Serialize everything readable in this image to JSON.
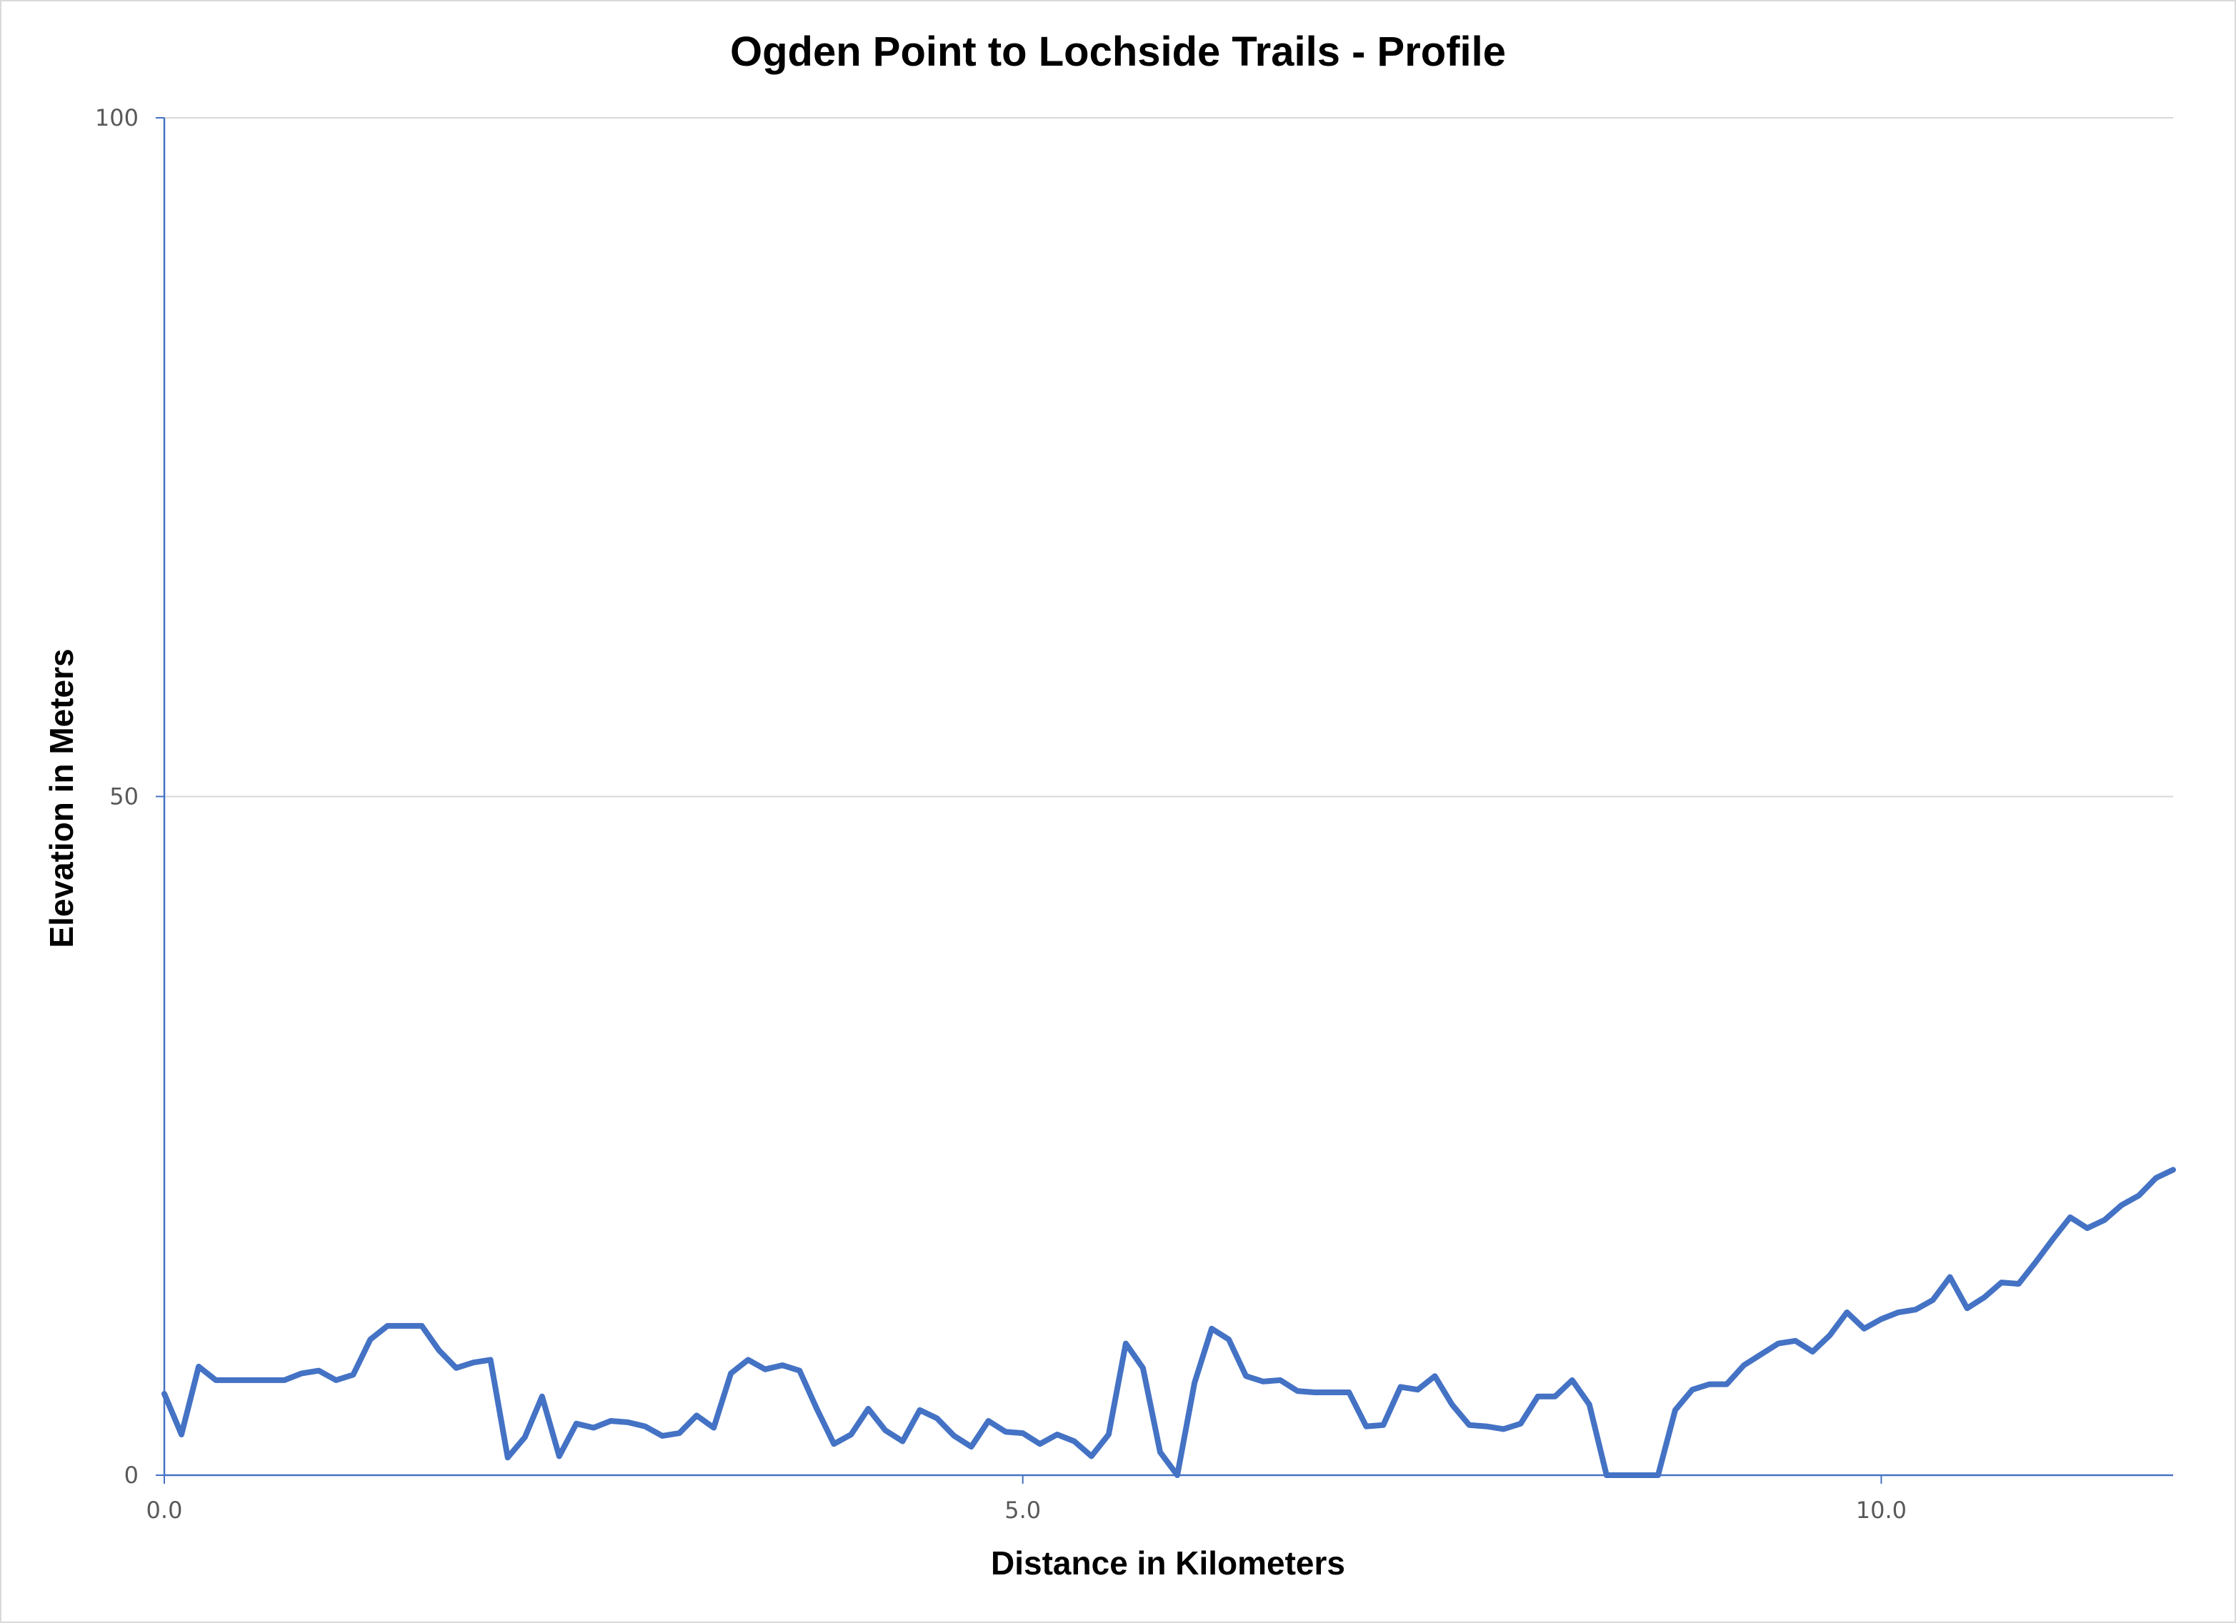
{
  "chart_data": {
    "type": "line",
    "title": "Ogden Point to Lochside Trails - Profile",
    "xlabel": "Distance in Kilometers",
    "ylabel": "Elevation in Meters",
    "xlim": [
      0,
      11.7
    ],
    "ylim": [
      0,
      100
    ],
    "xticks": [
      0,
      5,
      10
    ],
    "xtick_labels": [
      "0.0",
      "5.0",
      "10.0"
    ],
    "yticks": [
      0,
      50,
      100
    ],
    "ytick_labels": [
      "0",
      "50",
      "100"
    ],
    "grid": "horizontal",
    "legend": "none",
    "colors": {
      "line": "#4472c4",
      "axis": "#4472c4",
      "grid": "#d9d9d9"
    },
    "series": [
      {
        "x": [
          0,
          0.1,
          0.2,
          0.3,
          0.4,
          0.5,
          0.6,
          0.7,
          0.8,
          0.9,
          1.0,
          1.1,
          1.2,
          1.3,
          1.4,
          1.5,
          1.6,
          1.7,
          1.8,
          1.9,
          2.0,
          2.1,
          2.2,
          2.3,
          2.4,
          2.5,
          2.6,
          2.7,
          2.8,
          2.9,
          3.0,
          3.1,
          3.2,
          3.3,
          3.4,
          3.5,
          3.6,
          3.7,
          3.8,
          3.9,
          4.0,
          4.1,
          4.2,
          4.3,
          4.4,
          4.5,
          4.6,
          4.7,
          4.8,
          4.9,
          5.0,
          5.1,
          5.2,
          5.3,
          5.4,
          5.5,
          5.6,
          5.7,
          5.8,
          5.9,
          6.0,
          6.1,
          6.2,
          6.3,
          6.4,
          6.5,
          6.6,
          6.7,
          6.8,
          6.9,
          7.0,
          7.1,
          7.2,
          7.3,
          7.4,
          7.5,
          7.6,
          7.7,
          7.8,
          7.9,
          8.0,
          8.1,
          8.2,
          8.3,
          8.4,
          8.5,
          8.6,
          8.7,
          8.8,
          8.9,
          9.0,
          9.1,
          9.2,
          9.3,
          9.4,
          9.5,
          9.6,
          9.7,
          9.8,
          9.9,
          10.0,
          10.1,
          10.2,
          10.3,
          10.4,
          10.5,
          10.6,
          10.7,
          10.8,
          10.9,
          11.0,
          11.1,
          11.2,
          11.3,
          11.4,
          11.5,
          11.6,
          11.7
        ],
        "y": [
          6,
          3,
          8,
          7,
          7,
          7,
          7,
          7,
          7.5,
          7.7,
          7,
          7.4,
          10,
          11,
          11,
          11,
          9.2,
          7.9,
          8.3,
          8.5,
          1.3,
          2.8,
          5.8,
          1.4,
          3.8,
          3.5,
          4,
          3.9,
          3.6,
          2.9,
          3.1,
          4.4,
          3.5,
          7.5,
          8.5,
          7.8,
          8.1,
          7.7,
          4.9,
          2.3,
          3,
          4.9,
          3.3,
          2.5,
          4.8,
          4.2,
          2.9,
          2.1,
          4,
          3.2,
          3.1,
          2.3,
          3,
          2.5,
          1.4,
          3,
          9.7,
          7.9,
          1.7,
          0,
          6.8,
          10.8,
          10,
          7.3,
          6.9,
          7,
          6.2,
          6.1,
          6.1,
          6.1,
          3.6,
          3.7,
          6.5,
          6.3,
          7.3,
          5.2,
          3.7,
          3.6,
          3.4,
          3.8,
          5.8,
          5.8,
          7,
          5.2,
          0,
          0,
          0,
          0,
          4.8,
          6.3,
          6.7,
          6.7,
          8.1,
          8.9,
          9.7,
          9.9,
          9.1,
          10.3,
          12,
          10.8,
          11.5,
          12,
          12.2,
          12.9,
          14.6,
          12.3,
          13.1,
          14.2,
          14.1,
          15.7,
          17.4,
          19,
          18.2,
          18.8,
          19.9,
          20.6,
          21.9,
          22.5
        ]
      }
    ]
  }
}
